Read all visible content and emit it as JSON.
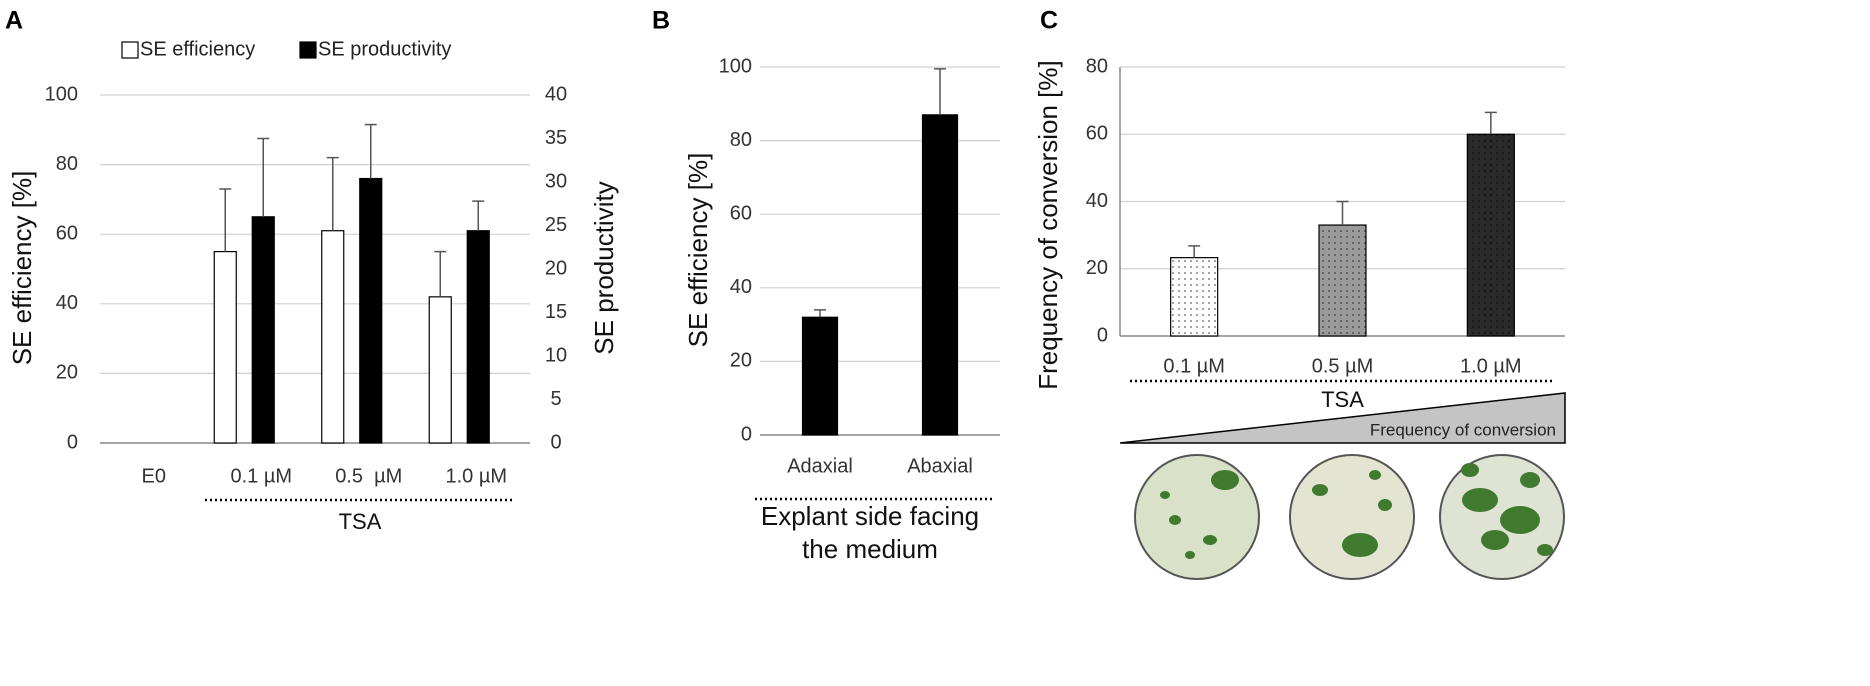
{
  "chart_data": [
    {
      "type": "bar",
      "panel_label": "A",
      "categories": [
        "E0",
        "0.1 µM",
        "0.5  µM",
        "1.0 µM"
      ],
      "series": [
        {
          "name": "SE efficiency",
          "color": "#ffffff",
          "values": [
            null,
            55,
            61,
            42
          ],
          "errors": [
            null,
            18,
            21,
            13
          ]
        },
        {
          "name": "SE productivity",
          "color": "#000000",
          "axis": "y2",
          "values": [
            null,
            26,
            30.4,
            24.4
          ],
          "errors": [
            null,
            9,
            6.2,
            3.4
          ]
        }
      ],
      "ylim": [
        0,
        100
      ],
      "yticks": [
        0,
        20,
        40,
        60,
        80,
        100
      ],
      "y2lim": [
        0,
        40
      ],
      "y2ticks": [
        0,
        5,
        10,
        15,
        20,
        25,
        30,
        35,
        40
      ],
      "ylabel": "SE efficiency [%]",
      "y2label": "SE productivity",
      "group_label": "TSA",
      "grid": true,
      "legend": "top"
    },
    {
      "type": "bar",
      "panel_label": "B",
      "categories": [
        "Adaxial",
        "Abaxial"
      ],
      "values": [
        32,
        87
      ],
      "errors": [
        2,
        12.5
      ],
      "color": "#000000",
      "ylim": [
        0,
        100
      ],
      "yticks": [
        0,
        20,
        40,
        60,
        80,
        100
      ],
      "ylabel": "SE efficiency [%]",
      "xlabel": "Explant side facing the medium",
      "grid": true
    },
    {
      "type": "bar",
      "panel_label": "C",
      "categories": [
        "0.1 µM",
        "0.5 µM",
        "1.0 µM"
      ],
      "values": [
        23.3,
        33,
        60
      ],
      "errors": [
        3.5,
        7,
        6.5
      ],
      "colors": [
        "#ffffff",
        "#9a9a9a",
        "#2a2a2a"
      ],
      "ylim": [
        0,
        80
      ],
      "yticks": [
        0,
        20,
        40,
        60,
        80
      ],
      "ylabel": "Frequency of conversion [%]",
      "group_label": "TSA",
      "annotation": "Frequency of conversion",
      "grid": true
    }
  ]
}
